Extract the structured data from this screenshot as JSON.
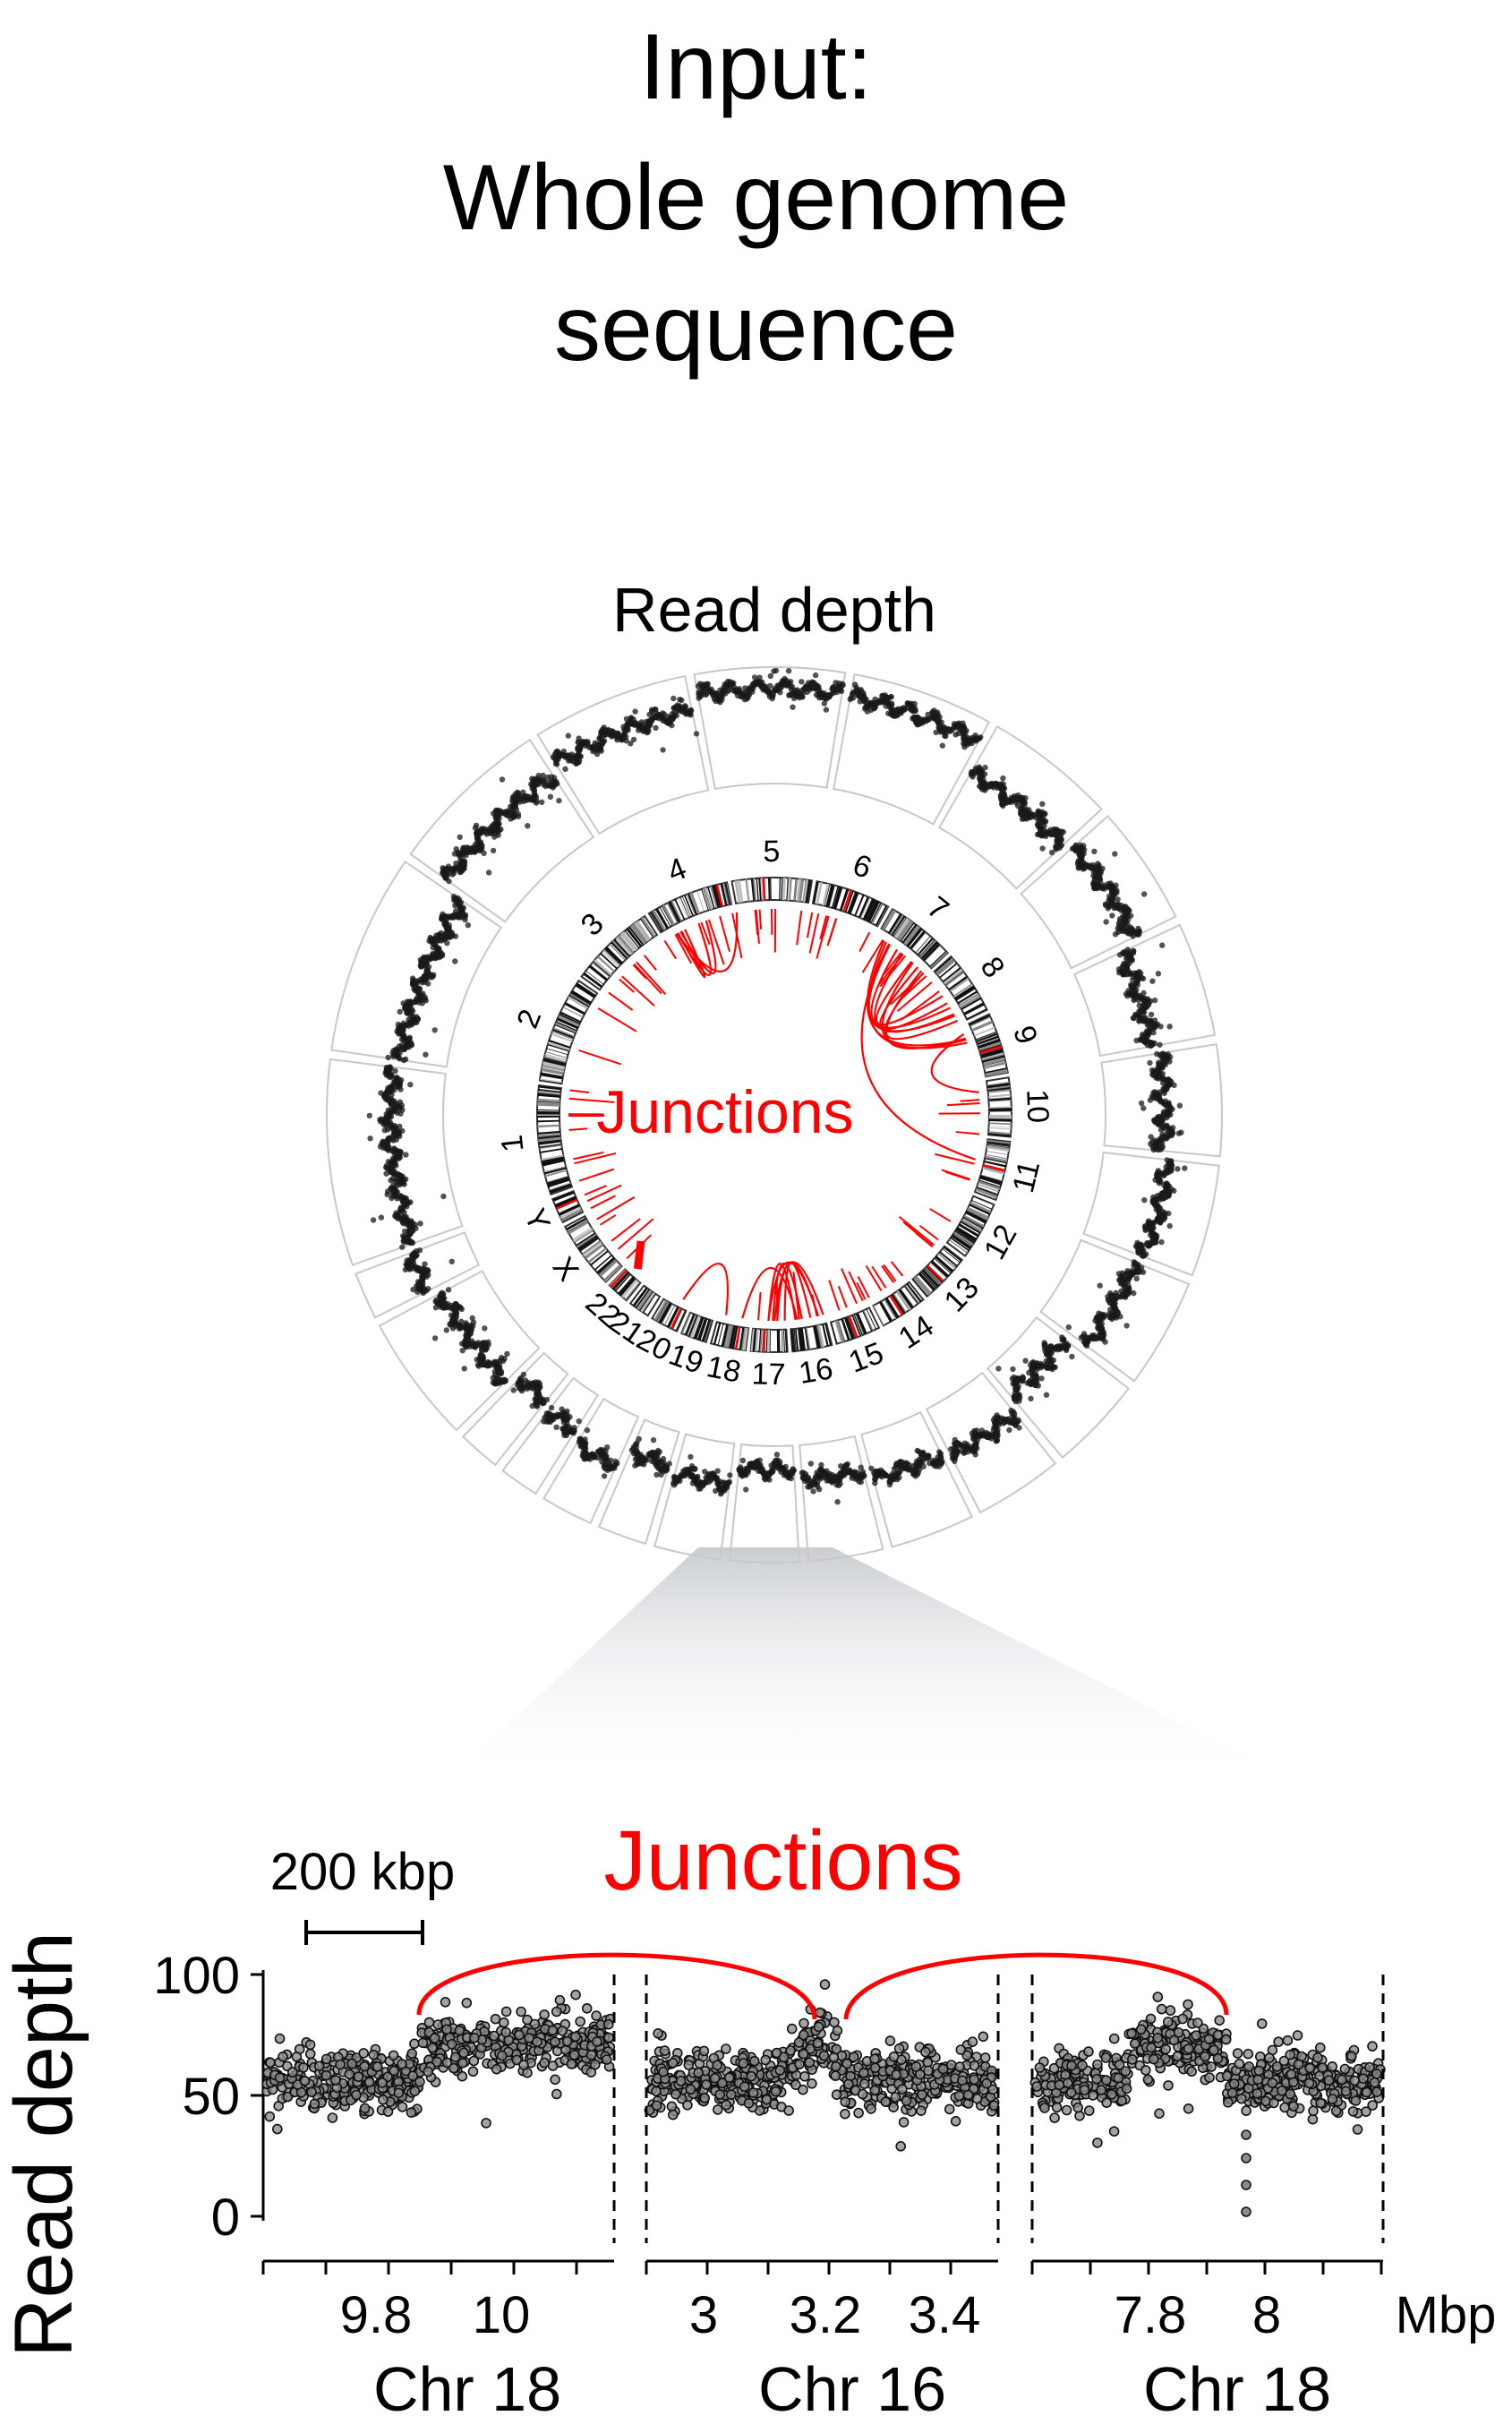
{
  "title": {
    "line1": "Input:",
    "line2": "Whole genome",
    "line3": "sequence"
  },
  "colors": {
    "accent": "#ff0000",
    "ring": "#c8c8c8",
    "dots": "#1a1a1a",
    "band_dark": "#000000",
    "band_highlight": "#ff0000"
  },
  "circos": {
    "outer_label": "Read depth",
    "inner_label": "Junctions",
    "chromosomes": [
      "1",
      "2",
      "3",
      "4",
      "5",
      "6",
      "7",
      "8",
      "9",
      "10",
      "11",
      "12",
      "13",
      "14",
      "15",
      "16",
      "17",
      "18",
      "19",
      "20",
      "21",
      "22",
      "X",
      "Y"
    ]
  },
  "track": {
    "title": "Junctions",
    "scale_label": "200 kbp",
    "ylabel": "Read depth",
    "yticks": [
      "0",
      "50",
      "100"
    ],
    "unit": "Mbp",
    "panels": [
      {
        "chrom": "Chr 18",
        "ticks": [
          "9.8",
          "10"
        ]
      },
      {
        "chrom": "Chr 16",
        "ticks": [
          "3",
          "3.2",
          "3.4"
        ]
      },
      {
        "chrom": "Chr 18",
        "ticks": [
          "7.8",
          "8"
        ]
      }
    ]
  }
}
